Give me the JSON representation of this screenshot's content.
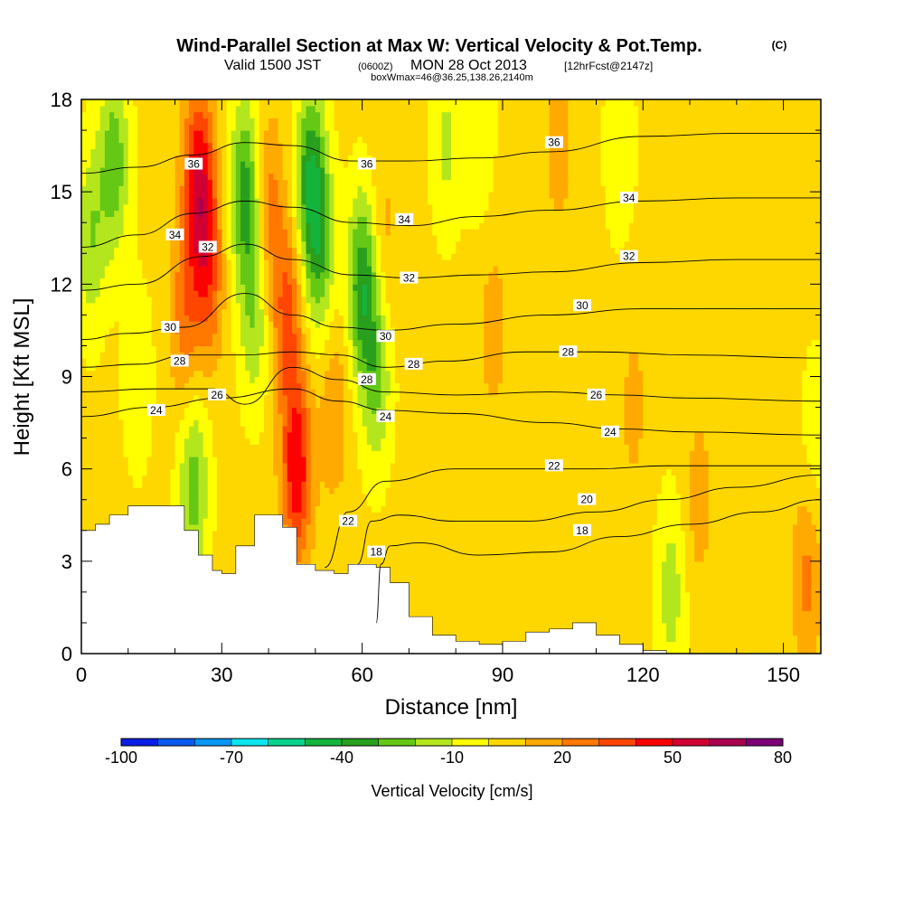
{
  "header": {
    "title": "Wind-Parallel Section at Max W: Vertical Velocity & Pot.Temp.",
    "copyright": "(C)",
    "valid_prefix": "Valid 1500 JST",
    "valid_z": "(0600Z)",
    "valid_date": "MON 28 Oct 2013",
    "fcst": "[12hrFcst@2147z]",
    "boxinfo": "boxWmax=46@36.25,138.26,2140m"
  },
  "chart_data": {
    "type": "heatmap",
    "xlabel": "Distance [nm]",
    "ylabel": "Height [Kft MSL]",
    "xlim": [
      0,
      158
    ],
    "ylim": [
      0,
      18
    ],
    "xticks": [
      0,
      30,
      60,
      90,
      120,
      150
    ],
    "yticks": [
      0,
      3,
      6,
      9,
      12,
      15,
      18
    ],
    "colorbar": {
      "label": "Vertical Velocity [cm/s]",
      "levels": [
        -100,
        -90,
        -80,
        -70,
        -60,
        -50,
        -40,
        -30,
        -20,
        -10,
        0,
        10,
        20,
        30,
        40,
        50,
        60,
        70,
        80
      ],
      "tick_labels": [
        "-100",
        "-70",
        "-40",
        "-10",
        "20",
        "50",
        "80"
      ],
      "colors": [
        "#0a1ee6",
        "#0a5af0",
        "#0a96f5",
        "#0ae6f0",
        "#0ad28c",
        "#14b43c",
        "#28a01e",
        "#64c814",
        "#b4e61e",
        "#ffff00",
        "#ffd700",
        "#ffaa00",
        "#ff7800",
        "#ff4600",
        "#ff0000",
        "#d20032",
        "#aa0050",
        "#7d0078"
      ]
    },
    "background_w": 3,
    "w_features": [
      {
        "x": 2,
        "z": 13.5,
        "w": -22
      },
      {
        "x": 7,
        "z": 16,
        "w": -30
      },
      {
        "x": 12,
        "z": 9,
        "w": -12
      },
      {
        "x": 25,
        "z": 15.5,
        "w": 45
      },
      {
        "x": 27,
        "z": 12.5,
        "w": 32
      },
      {
        "x": 22,
        "z": 11,
        "w": 22
      },
      {
        "x": 24,
        "z": 5.5,
        "w": -28
      },
      {
        "x": 35,
        "z": 15,
        "w": -38
      },
      {
        "x": 37,
        "z": 11,
        "w": -22
      },
      {
        "x": 40,
        "z": 14.5,
        "w": 22
      },
      {
        "x": 44,
        "z": 11,
        "w": 30
      },
      {
        "x": 46,
        "z": 6,
        "w": 46
      },
      {
        "x": 49,
        "z": 15.5,
        "w": -40
      },
      {
        "x": 51,
        "z": 13,
        "w": -28
      },
      {
        "x": 54,
        "z": 8,
        "w": 16
      },
      {
        "x": 60,
        "z": 12,
        "w": -40
      },
      {
        "x": 63,
        "z": 9,
        "w": -25
      },
      {
        "x": 65,
        "z": 13.5,
        "w": 10
      },
      {
        "x": 78,
        "z": 16.5,
        "w": -15
      },
      {
        "x": 85,
        "z": 17,
        "w": -12
      },
      {
        "x": 88,
        "z": 10.5,
        "w": 12
      },
      {
        "x": 102,
        "z": 16.5,
        "w": 12
      },
      {
        "x": 115,
        "z": 16.5,
        "w": -12
      },
      {
        "x": 118,
        "z": 8,
        "w": 10
      },
      {
        "x": 126,
        "z": 2,
        "w": -18
      },
      {
        "x": 132,
        "z": 5,
        "w": 12
      },
      {
        "x": 155,
        "z": 2.5,
        "w": 20
      },
      {
        "x": 157,
        "z": 7,
        "w": -10
      }
    ],
    "terrain": [
      [
        0,
        4
      ],
      [
        3,
        4.2
      ],
      [
        6,
        4.5
      ],
      [
        10,
        4.8
      ],
      [
        15,
        4.8
      ],
      [
        19,
        4.8
      ],
      [
        22,
        4
      ],
      [
        25,
        3.2
      ],
      [
        28,
        2.7
      ],
      [
        30,
        2.6
      ],
      [
        33,
        3.5
      ],
      [
        37,
        4.5
      ],
      [
        40,
        4.5
      ],
      [
        43,
        4.1
      ],
      [
        46,
        2.9
      ],
      [
        50,
        2.7
      ],
      [
        54,
        2.6
      ],
      [
        57,
        2.9
      ],
      [
        60,
        2.9
      ],
      [
        63,
        2.8
      ],
      [
        66,
        2.3
      ],
      [
        70,
        1.2
      ],
      [
        75,
        0.6
      ],
      [
        80,
        0.4
      ],
      [
        85,
        0.3
      ],
      [
        90,
        0.4
      ],
      [
        95,
        0.7
      ],
      [
        100,
        0.8
      ],
      [
        105,
        1
      ],
      [
        110,
        0.6
      ],
      [
        115,
        0.3
      ],
      [
        120,
        0.1
      ],
      [
        125,
        0
      ],
      [
        158,
        0
      ]
    ],
    "theta_contours": [
      {
        "label": "18",
        "level": 18,
        "pts": [
          [
            63,
            1
          ],
          [
            64,
            2.9
          ],
          [
            66,
            3.5
          ],
          [
            72,
            3.6
          ],
          [
            85,
            3.2
          ],
          [
            100,
            3.3
          ],
          [
            115,
            3.8
          ],
          [
            130,
            4.2
          ],
          [
            145,
            4.6
          ],
          [
            158,
            5
          ]
        ],
        "labels_at": [
          [
            63,
            3.3
          ],
          [
            107,
            4
          ]
        ]
      },
      {
        "label": "20",
        "level": 20,
        "pts": [
          [
            59,
            2.9
          ],
          [
            62,
            4.3
          ],
          [
            68,
            4.5
          ],
          [
            80,
            4.3
          ],
          [
            95,
            4.3
          ],
          [
            110,
            4.6
          ],
          [
            125,
            5
          ],
          [
            140,
            5.4
          ],
          [
            158,
            5.8
          ]
        ],
        "labels_at": [
          [
            108,
            5
          ]
        ]
      },
      {
        "label": "22",
        "level": 22,
        "pts": [
          [
            52,
            2.8
          ],
          [
            57,
            4.6
          ],
          [
            65,
            5.6
          ],
          [
            80,
            6
          ],
          [
            95,
            6
          ],
          [
            110,
            6
          ],
          [
            125,
            6.1
          ],
          [
            140,
            6.1
          ],
          [
            158,
            6.1
          ]
        ],
        "labels_at": [
          [
            57,
            4.3
          ],
          [
            101,
            6.1
          ]
        ]
      },
      {
        "label": "24",
        "level": 24,
        "pts": [
          [
            0,
            7.7
          ],
          [
            15,
            8
          ],
          [
            30,
            8.3
          ],
          [
            45,
            8.6
          ],
          [
            55,
            8.2
          ],
          [
            65,
            7.9
          ],
          [
            80,
            7.8
          ],
          [
            100,
            7.5
          ],
          [
            115,
            7.3
          ],
          [
            130,
            7.2
          ],
          [
            158,
            7.1
          ]
        ],
        "labels_at": [
          [
            16,
            7.9
          ],
          [
            65,
            7.7
          ],
          [
            113,
            7.2
          ]
        ]
      },
      {
        "label": "26",
        "level": 26,
        "pts": [
          [
            0,
            8.5
          ],
          [
            15,
            8.6
          ],
          [
            28,
            8.6
          ],
          [
            35,
            8.1
          ],
          [
            45,
            9.3
          ],
          [
            55,
            8.9
          ],
          [
            65,
            8.5
          ],
          [
            80,
            8.4
          ],
          [
            100,
            8.5
          ],
          [
            115,
            8.4
          ],
          [
            130,
            8.3
          ],
          [
            158,
            8.2
          ]
        ],
        "labels_at": [
          [
            29,
            8.4
          ],
          [
            110,
            8.4
          ]
        ]
      },
      {
        "label": "28",
        "level": 28,
        "pts": [
          [
            0,
            9.3
          ],
          [
            12,
            9.4
          ],
          [
            23,
            9.7
          ],
          [
            35,
            9.7
          ],
          [
            45,
            9.8
          ],
          [
            55,
            9.7
          ],
          [
            65,
            9.3
          ],
          [
            78,
            9.5
          ],
          [
            95,
            9.8
          ],
          [
            110,
            9.8
          ],
          [
            130,
            9.7
          ],
          [
            158,
            9.6
          ]
        ],
        "labels_at": [
          [
            21,
            9.5
          ],
          [
            61,
            8.9
          ],
          [
            71,
            9.4
          ],
          [
            104,
            9.8
          ]
        ]
      },
      {
        "label": "30",
        "level": 30,
        "pts": [
          [
            0,
            10.2
          ],
          [
            10,
            10.4
          ],
          [
            22,
            10.6
          ],
          [
            35,
            11.7
          ],
          [
            45,
            11
          ],
          [
            55,
            10.6
          ],
          [
            65,
            10.5
          ],
          [
            80,
            10.7
          ],
          [
            100,
            11
          ],
          [
            120,
            11.2
          ],
          [
            140,
            11.2
          ],
          [
            158,
            11.2
          ]
        ],
        "labels_at": [
          [
            19,
            10.6
          ],
          [
            65,
            10.3
          ],
          [
            107,
            11.3
          ]
        ]
      },
      {
        "label": "32",
        "level": 32,
        "pts": [
          [
            0,
            11.8
          ],
          [
            12,
            12
          ],
          [
            26,
            12.9
          ],
          [
            35,
            13.3
          ],
          [
            45,
            12.8
          ],
          [
            58,
            12.3
          ],
          [
            70,
            12.2
          ],
          [
            85,
            12.3
          ],
          [
            100,
            12.4
          ],
          [
            120,
            12.7
          ],
          [
            140,
            12.8
          ],
          [
            158,
            12.8
          ]
        ],
        "labels_at": [
          [
            27,
            13.2
          ],
          [
            70,
            12.2
          ],
          [
            117,
            12.9
          ]
        ]
      },
      {
        "label": "34",
        "level": 34,
        "pts": [
          [
            0,
            13.2
          ],
          [
            12,
            13.6
          ],
          [
            24,
            14.3
          ],
          [
            35,
            14.7
          ],
          [
            45,
            14.5
          ],
          [
            58,
            14
          ],
          [
            70,
            13.9
          ],
          [
            85,
            14.2
          ],
          [
            100,
            14.4
          ],
          [
            120,
            14.7
          ],
          [
            140,
            14.8
          ],
          [
            158,
            14.8
          ]
        ],
        "labels_at": [
          [
            20,
            13.6
          ],
          [
            69,
            14.1
          ],
          [
            117,
            14.8
          ]
        ]
      },
      {
        "label": "36",
        "level": 36,
        "pts": [
          [
            0,
            15.6
          ],
          [
            12,
            15.8
          ],
          [
            24,
            16.2
          ],
          [
            35,
            16.6
          ],
          [
            45,
            16.5
          ],
          [
            58,
            16
          ],
          [
            70,
            16
          ],
          [
            85,
            16.1
          ],
          [
            100,
            16.3
          ],
          [
            120,
            16.8
          ],
          [
            140,
            16.9
          ],
          [
            158,
            16.9
          ]
        ],
        "labels_at": [
          [
            24,
            15.9
          ],
          [
            61,
            15.9
          ],
          [
            101,
            16.6
          ]
        ]
      }
    ]
  }
}
